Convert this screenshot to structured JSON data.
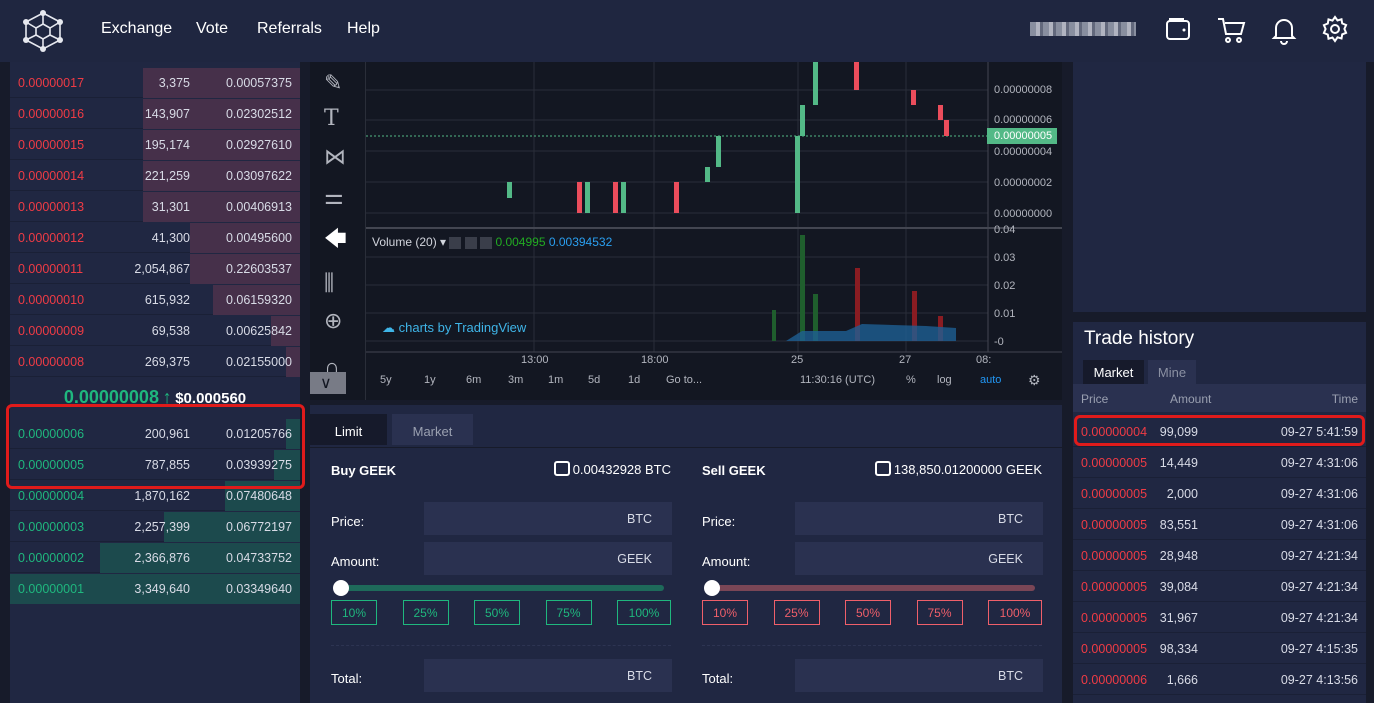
{
  "header": {
    "nav": [
      "Exchange",
      "Vote",
      "Referrals",
      "Help"
    ],
    "user": "(blurred username)",
    "icons": [
      "wallet-icon",
      "cart-icon",
      "bell-icon",
      "gear-icon"
    ]
  },
  "orderbook": {
    "asks": [
      [
        "0.00000017",
        "3,375",
        "0.00057375"
      ],
      [
        "0.00000016",
        "143,907",
        "0.02302512"
      ],
      [
        "0.00000015",
        "195,174",
        "0.02927610"
      ],
      [
        "0.00000014",
        "221,259",
        "0.03097622"
      ],
      [
        "0.00000013",
        "31,301",
        "0.00406913"
      ],
      [
        "0.00000012",
        "41,300",
        "0.00495600"
      ],
      [
        "0.00000011",
        "2,054,867",
        "0.22603537"
      ],
      [
        "0.00000010",
        "615,932",
        "0.06159320"
      ],
      [
        "0.00000009",
        "69,538",
        "0.00625842"
      ],
      [
        "0.00000008",
        "269,375",
        "0.02155000"
      ]
    ],
    "ask_depth": [
      54,
      54,
      54,
      54,
      54,
      38,
      38,
      30,
      10,
      5
    ],
    "last_price": "0.00000008",
    "last_arrow": "↑",
    "last_usd": "$0.000560",
    "bids": [
      [
        "0.00000006",
        "200,961",
        "0.01205766"
      ],
      [
        "0.00000005",
        "787,855",
        "0.03939275"
      ],
      [
        "0.00000004",
        "1,870,162",
        "0.07480648"
      ],
      [
        "0.00000003",
        "2,257,399",
        "0.06772197"
      ],
      [
        "0.00000002",
        "2,366,876",
        "0.04733752"
      ],
      [
        "0.00000001",
        "3,349,640",
        "0.03349640"
      ]
    ],
    "bid_depth": [
      5,
      9,
      26,
      47,
      69,
      100
    ]
  },
  "chart": {
    "price_ticks": [
      "0.00000008",
      "0.00000006",
      "0.00000004",
      "0.00000002",
      "0.00000000"
    ],
    "current_price": "0.00000005",
    "volume_label": "Volume (20)",
    "volume_val1": "0.004995",
    "volume_val2": "0.00394532",
    "volume_ticks": [
      "0.04",
      "0.03",
      "0.02",
      "0.01",
      "-0"
    ],
    "time_ticks": [
      "13:00",
      "18:00",
      "25",
      "27",
      "08:"
    ],
    "ranges": [
      "5y",
      "1y",
      "6m",
      "3m",
      "1m",
      "5d",
      "1d",
      "Go to..."
    ],
    "clock": "11:30:16 (UTC)",
    "pct": "%",
    "log": "log",
    "auto": "auto",
    "watermark": "charts by TradingView"
  },
  "form": {
    "tabs": [
      "Limit",
      "Market"
    ],
    "buy": {
      "title": "Buy GEEK",
      "balance": "0.00432928 BTC",
      "price_label": "Price:",
      "price_unit": "BTC",
      "amount_label": "Amount:",
      "amount_unit": "GEEK",
      "total_label": "Total:",
      "total_unit": "BTC",
      "slider": 0
    },
    "sell": {
      "title": "Sell GEEK",
      "balance": "138,850.01200000 GEEK",
      "price_label": "Price:",
      "price_unit": "BTC",
      "amount_label": "Amount:",
      "amount_unit": "GEEK",
      "total_label": "Total:",
      "total_unit": "BTC",
      "slider": 0
    },
    "percents": [
      "10%",
      "25%",
      "50%",
      "75%",
      "100%"
    ]
  },
  "trade_history": {
    "title": "Trade history",
    "tabs": [
      "Market",
      "Mine"
    ],
    "columns": [
      "Price",
      "Amount",
      "Time"
    ],
    "rows": [
      [
        "0.00000004",
        "99,099",
        "09-27 5:41:59"
      ],
      [
        "0.00000005",
        "14,449",
        "09-27 4:31:06"
      ],
      [
        "0.00000005",
        "2,000",
        "09-27 4:31:06"
      ],
      [
        "0.00000005",
        "83,551",
        "09-27 4:31:06"
      ],
      [
        "0.00000005",
        "28,948",
        "09-27 4:21:34"
      ],
      [
        "0.00000005",
        "39,084",
        "09-27 4:21:34"
      ],
      [
        "0.00000005",
        "31,967",
        "09-27 4:21:34"
      ],
      [
        "0.00000005",
        "98,334",
        "09-27 4:15:35"
      ],
      [
        "0.00000006",
        "1,666",
        "09-27 4:13:56"
      ]
    ]
  },
  "colors": {
    "buy": "#1fb77e",
    "sell": "#ef3b45",
    "bg": "#202742",
    "highlight": "#e01b1b"
  }
}
